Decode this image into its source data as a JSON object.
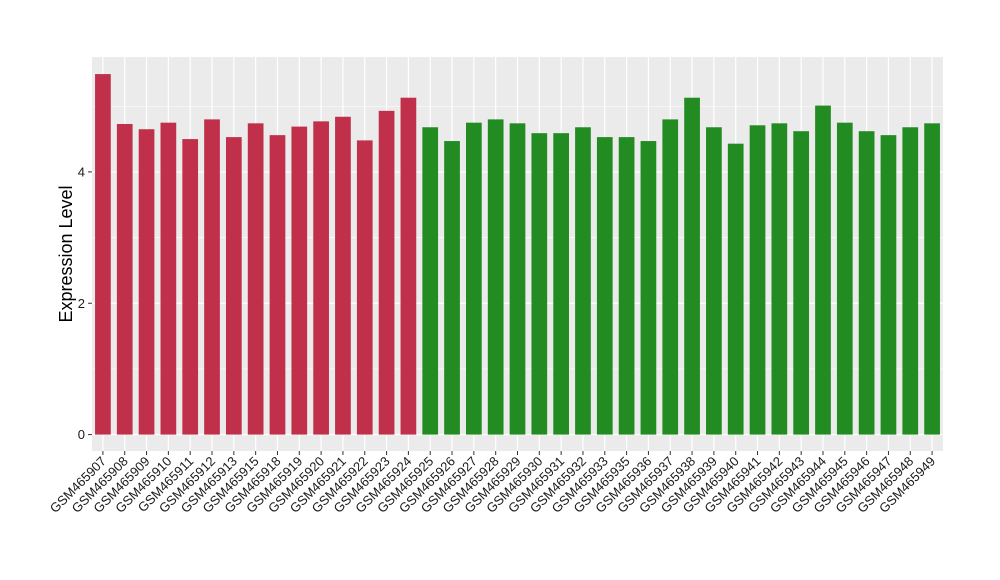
{
  "chart_data": {
    "type": "bar",
    "title": "",
    "xlabel": "",
    "ylabel": "Expression Level",
    "ylim": [
      -0.25,
      5.75
    ],
    "yticks": [
      0,
      2,
      4
    ],
    "grid": true,
    "legend": "none",
    "panel_color": "#ebebeb",
    "grid_color": "#ffffff",
    "categories": [
      "GSM465907",
      "GSM465908",
      "GSM465909",
      "GSM465910",
      "GSM465911",
      "GSM465912",
      "GSM465913",
      "GSM465915",
      "GSM465918",
      "GSM465919",
      "GSM465920",
      "GSM465921",
      "GSM465922",
      "GSM465923",
      "GSM465924",
      "GSM465925",
      "GSM465926",
      "GSM465927",
      "GSM465928",
      "GSM465929",
      "GSM465930",
      "GSM465931",
      "GSM465932",
      "GSM465933",
      "GSM465935",
      "GSM465936",
      "GSM465937",
      "GSM465938",
      "GSM465939",
      "GSM465940",
      "GSM465941",
      "GSM465942",
      "GSM465943",
      "GSM465944",
      "GSM465945",
      "GSM465946",
      "GSM465947",
      "GSM465948",
      "GSM465949"
    ],
    "values": [
      5.49,
      4.73,
      4.65,
      4.75,
      4.5,
      4.8,
      4.53,
      4.74,
      4.56,
      4.69,
      4.77,
      4.84,
      4.48,
      4.93,
      5.13,
      4.68,
      4.47,
      4.75,
      4.8,
      4.74,
      4.59,
      4.59,
      4.68,
      4.53,
      4.53,
      4.47,
      4.8,
      5.13,
      4.68,
      4.43,
      4.71,
      4.74,
      4.62,
      5.01,
      4.75,
      4.62,
      4.56,
      4.68,
      4.74
    ],
    "colors": [
      "#c0304a",
      "#c0304a",
      "#c0304a",
      "#c0304a",
      "#c0304a",
      "#c0304a",
      "#c0304a",
      "#c0304a",
      "#c0304a",
      "#c0304a",
      "#c0304a",
      "#c0304a",
      "#c0304a",
      "#c0304a",
      "#c0304a",
      "#228b22",
      "#228b22",
      "#228b22",
      "#228b22",
      "#228b22",
      "#228b22",
      "#228b22",
      "#228b22",
      "#228b22",
      "#228b22",
      "#228b22",
      "#228b22",
      "#228b22",
      "#228b22",
      "#228b22",
      "#228b22",
      "#228b22",
      "#228b22",
      "#228b22",
      "#228b22",
      "#228b22",
      "#228b22",
      "#228b22",
      "#228b22"
    ]
  }
}
